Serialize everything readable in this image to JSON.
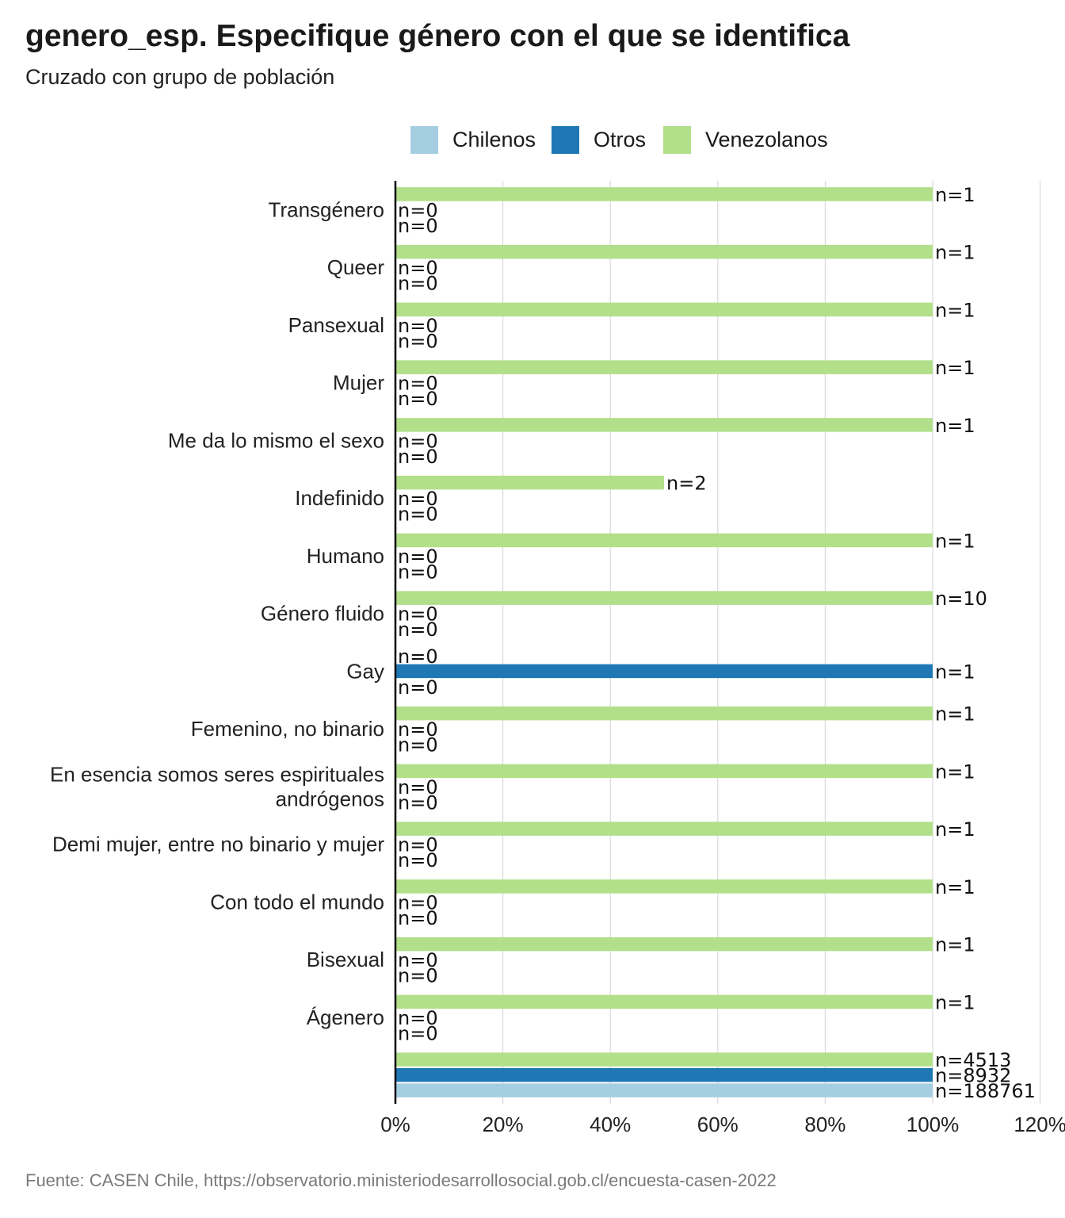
{
  "title": "genero_esp. Especifique género con el que se identifica",
  "subtitle": "Cruzado con grupo de población",
  "source": "Fuente: CASEN Chile, https://observatorio.ministeriodesarrollosocial.gob.cl/encuesta-casen-2022",
  "colors": {
    "Chilenos": "#a6cee3",
    "Otros": "#1f78b4",
    "Venezolanos": "#b2df8a",
    "grid": "#d9d9d9",
    "axis": "#000000"
  },
  "legend": {
    "items": [
      {
        "label": "Chilenos",
        "color": "#a6cee3"
      },
      {
        "label": "Otros",
        "color": "#1f78b4"
      },
      {
        "label": "Venezolanos",
        "color": "#b2df8a"
      }
    ]
  },
  "chart_data": {
    "type": "bar",
    "orientation": "horizontal",
    "title": "genero_esp. Especifique género con el que se identifica",
    "subtitle": "Cruzado con grupo de población",
    "xlabel": "",
    "ylabel": "",
    "xlim": [
      0,
      120
    ],
    "x_ticks": [
      "0%",
      "20%",
      "40%",
      "60%",
      "80%",
      "100%",
      "120%"
    ],
    "grid": true,
    "legend_position": "top",
    "categories": [
      "Transgénero",
      "Queer",
      "Pansexual",
      "Mujer",
      "Me da lo mismo el sexo",
      "Indefinido",
      "Humano",
      "Género fluido",
      "Gay",
      "Femenino, no binario",
      "En esencia somos seres espirituales andrógenos",
      "Demi mujer, entre no binario y mujer",
      "Con todo el mundo",
      "Bisexual",
      "Ágenero",
      ""
    ],
    "category_lines": [
      [
        "Transgénero"
      ],
      [
        "Queer"
      ],
      [
        "Pansexual"
      ],
      [
        "Mujer"
      ],
      [
        "Me da lo mismo el sexo"
      ],
      [
        "Indefinido"
      ],
      [
        "Humano"
      ],
      [
        "Género fluido"
      ],
      [
        "Gay"
      ],
      [
        "Femenino, no binario"
      ],
      [
        "En esencia somos seres espirituales",
        "andrógenos"
      ],
      [
        "Demi mujer, entre no binario y mujer"
      ],
      [
        "Con todo el mundo"
      ],
      [
        "Bisexual"
      ],
      [
        "Ágenero"
      ],
      []
    ],
    "series": [
      {
        "name": "Venezolanos",
        "values": [
          100,
          100,
          100,
          100,
          100,
          50,
          100,
          100,
          0,
          100,
          100,
          100,
          100,
          100,
          100,
          100
        ],
        "n_labels": [
          "n=1",
          "n=1",
          "n=1",
          "n=1",
          "n=1",
          "n=2",
          "n=1",
          "n=10",
          "n=0",
          "n=1",
          "n=1",
          "n=1",
          "n=1",
          "n=1",
          "n=1",
          "n=4513"
        ]
      },
      {
        "name": "Otros",
        "values": [
          0,
          0,
          0,
          0,
          0,
          0,
          0,
          0,
          100,
          0,
          0,
          0,
          0,
          0,
          0,
          100
        ],
        "n_labels": [
          "n=0",
          "n=0",
          "n=0",
          "n=0",
          "n=0",
          "n=0",
          "n=0",
          "n=0",
          "n=1",
          "n=0",
          "n=0",
          "n=0",
          "n=0",
          "n=0",
          "n=0",
          "n=8932"
        ]
      },
      {
        "name": "Chilenos",
        "values": [
          0,
          0,
          0,
          0,
          0,
          0,
          0,
          0,
          0,
          0,
          0,
          0,
          0,
          0,
          0,
          100
        ],
        "n_labels": [
          "n=0",
          "n=0",
          "n=0",
          "n=0",
          "n=0",
          "n=0",
          "n=0",
          "n=0",
          "n=0",
          "n=0",
          "n=0",
          "n=0",
          "n=0",
          "n=0",
          "n=0",
          "n=188761"
        ]
      }
    ]
  }
}
